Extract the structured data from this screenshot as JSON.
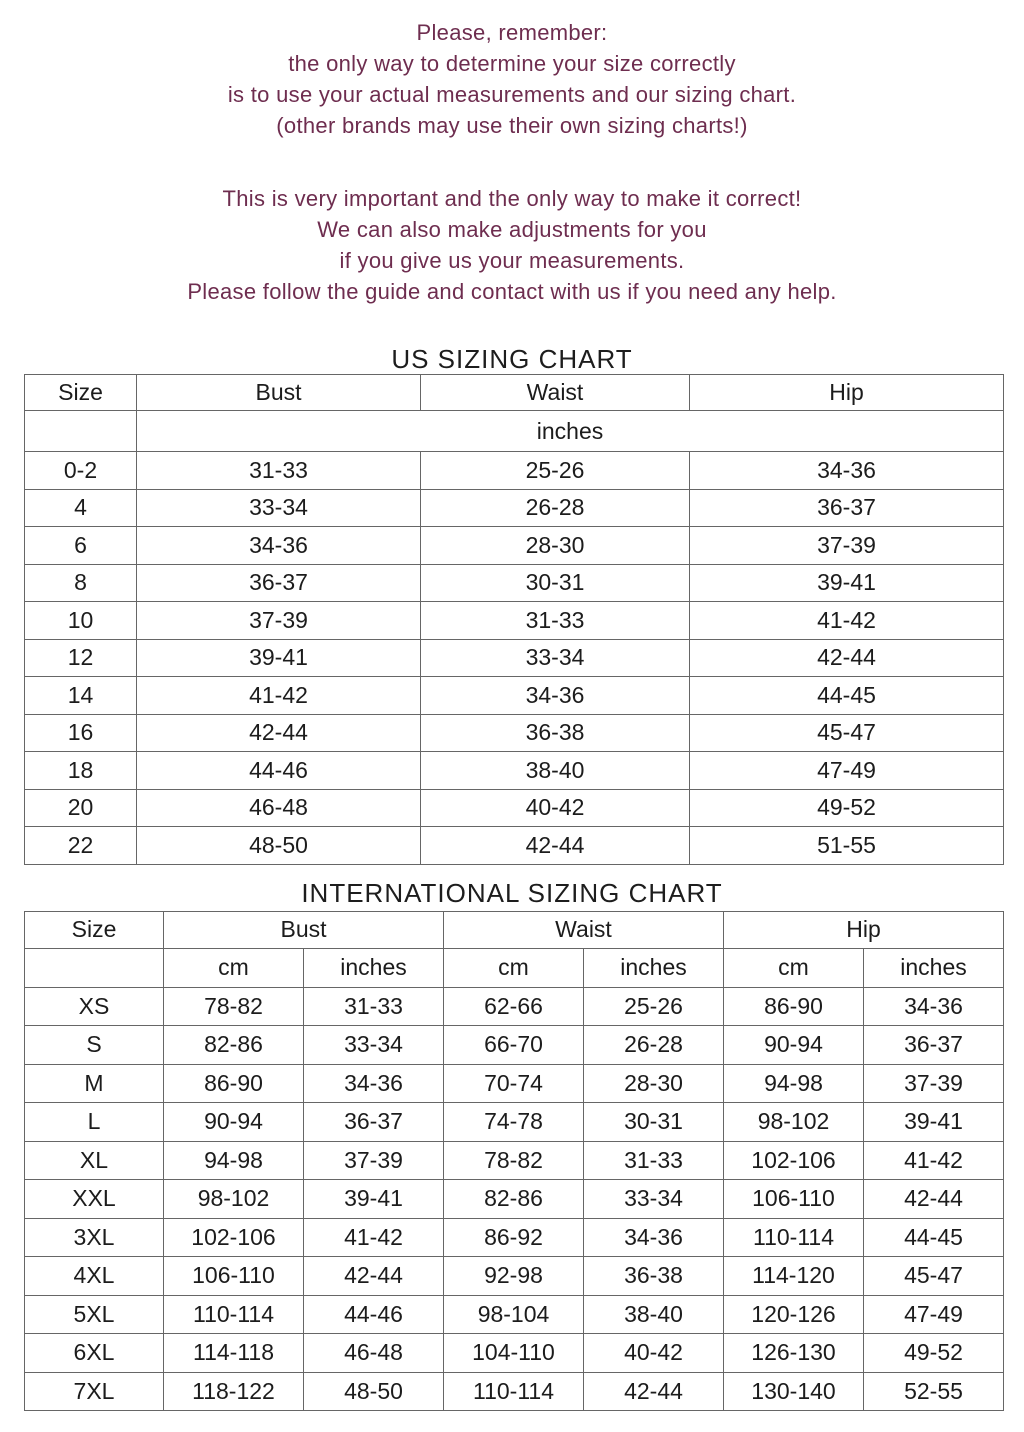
{
  "colors": {
    "intro_text": "#6e2d4f",
    "table_text": "#1c1c1c",
    "border": "#666666",
    "background": "#ffffff"
  },
  "intro": {
    "block1": [
      "Please, remember:",
      "the only way to determine your size correctly",
      "is to use your actual measurements and our sizing chart.",
      "(other brands may use their own sizing charts!)"
    ],
    "block2": [
      "This is very important and the only way to make it correct!",
      "We can also make adjustments for you",
      "if you give us your measurements.",
      "Please follow the guide and contact with us if you need any help."
    ]
  },
  "us_chart": {
    "title": "US SIZING CHART",
    "headers": [
      "Size",
      "Bust",
      "Waist",
      "Hip"
    ],
    "units_label": "inches",
    "rows": [
      [
        "0-2",
        "31-33",
        "25-26",
        "34-36"
      ],
      [
        "4",
        "33-34",
        "26-28",
        "36-37"
      ],
      [
        "6",
        "34-36",
        "28-30",
        "37-39"
      ],
      [
        "8",
        "36-37",
        "30-31",
        "39-41"
      ],
      [
        "10",
        "37-39",
        "31-33",
        "41-42"
      ],
      [
        "12",
        "39-41",
        "33-34",
        "42-44"
      ],
      [
        "14",
        "41-42",
        "34-36",
        "44-45"
      ],
      [
        "16",
        "42-44",
        "36-38",
        "45-47"
      ],
      [
        "18",
        "44-46",
        "38-40",
        "47-49"
      ],
      [
        "20",
        "46-48",
        "40-42",
        "49-52"
      ],
      [
        "22",
        "48-50",
        "42-44",
        "51-55"
      ]
    ]
  },
  "intl_chart": {
    "title": "INTERNATIONAL SIZING CHART",
    "headers": [
      "Size",
      "Bust",
      "Waist",
      "Hip"
    ],
    "unit_headers": [
      "cm",
      "inches",
      "cm",
      "inches",
      "cm",
      "inches"
    ],
    "rows": [
      [
        "XS",
        "78-82",
        "31-33",
        "62-66",
        "25-26",
        "86-90",
        "34-36"
      ],
      [
        "S",
        "82-86",
        "33-34",
        "66-70",
        "26-28",
        "90-94",
        "36-37"
      ],
      [
        "M",
        "86-90",
        "34-36",
        "70-74",
        "28-30",
        "94-98",
        "37-39"
      ],
      [
        "L",
        "90-94",
        "36-37",
        "74-78",
        "30-31",
        "98-102",
        "39-41"
      ],
      [
        "XL",
        "94-98",
        "37-39",
        "78-82",
        "31-33",
        "102-106",
        "41-42"
      ],
      [
        "XXL",
        "98-102",
        "39-41",
        "82-86",
        "33-34",
        "106-110",
        "42-44"
      ],
      [
        "3XL",
        "102-106",
        "41-42",
        "86-92",
        "34-36",
        "110-114",
        "44-45"
      ],
      [
        "4XL",
        "106-110",
        "42-44",
        "92-98",
        "36-38",
        "114-120",
        "45-47"
      ],
      [
        "5XL",
        "110-114",
        "44-46",
        "98-104",
        "38-40",
        "120-126",
        "47-49"
      ],
      [
        "6XL",
        "114-118",
        "46-48",
        "104-110",
        "40-42",
        "126-130",
        "49-52"
      ],
      [
        "7XL",
        "118-122",
        "48-50",
        "110-114",
        "42-44",
        "130-140",
        "52-55"
      ]
    ]
  }
}
